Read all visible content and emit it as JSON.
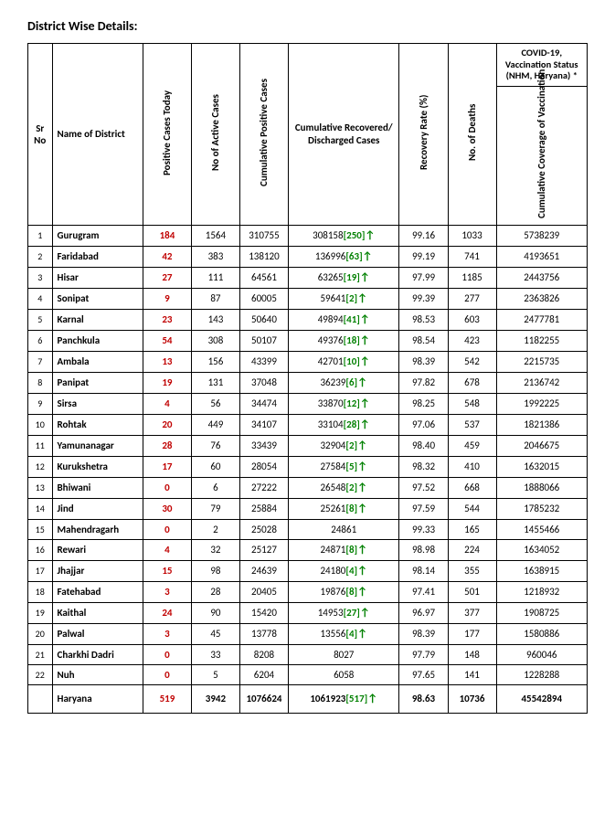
{
  "title": "District Wise Details:",
  "headers": {
    "sr": "Sr No",
    "name": "Name of District",
    "today": "Positive Cases Today",
    "active": "No of Active Cases",
    "cumpos": "Cumulative Positive Cases",
    "recov": "Cumulative Recovered/ Discharged Cases",
    "rate": "Recovery Rate (%)",
    "deaths": "No. of Deaths",
    "vacc_top": "COVID-19, Vaccination Status (NHM, Haryana) *",
    "vacc": "Cumulative Coverage of Vaccination"
  },
  "rows": [
    {
      "sr": "1",
      "d": "Gurugram",
      "t": "184",
      "a": "1564",
      "c": "310755",
      "r": "308158",
      "rd": "[250]",
      "ar": "↑",
      "rr": "99.16",
      "dd": "1033",
      "v": "5738239"
    },
    {
      "sr": "2",
      "d": "Faridabad",
      "t": "42",
      "a": "383",
      "c": "138120",
      "r": "136996",
      "rd": "[63]",
      "ar": "↑",
      "rr": "99.19",
      "dd": "741",
      "v": "4193651"
    },
    {
      "sr": "3",
      "d": "Hisar",
      "t": "27",
      "a": "111",
      "c": "64561",
      "r": "63265",
      "rd": "[19]",
      "ar": "↑",
      "rr": "97.99",
      "dd": "1185",
      "v": "2443756"
    },
    {
      "sr": "4",
      "d": "Sonipat",
      "t": "9",
      "a": "87",
      "c": "60005",
      "r": "59641",
      "rd": "[2]",
      "ar": "↑",
      "rr": "99.39",
      "dd": "277",
      "v": "2363826"
    },
    {
      "sr": "5",
      "d": "Karnal",
      "t": "23",
      "a": "143",
      "c": "50640",
      "r": "49894",
      "rd": "[41]",
      "ar": "↑",
      "rr": "98.53",
      "dd": "603",
      "v": "2477781"
    },
    {
      "sr": "6",
      "d": "Panchkula",
      "t": "54",
      "a": "308",
      "c": "50107",
      "r": "49376",
      "rd": "[18]",
      "ar": "↑",
      "rr": "98.54",
      "dd": "423",
      "v": "1182255"
    },
    {
      "sr": "7",
      "d": "Ambala",
      "t": "13",
      "a": "156",
      "c": "43399",
      "r": "42701",
      "rd": "[10]",
      "ar": "↑",
      "rr": "98.39",
      "dd": "542",
      "v": "2215735"
    },
    {
      "sr": "8",
      "d": "Panipat",
      "t": "19",
      "a": "131",
      "c": "37048",
      "r": "36239",
      "rd": "[6]",
      "ar": "↑",
      "rr": "97.82",
      "dd": "678",
      "v": "2136742"
    },
    {
      "sr": "9",
      "d": "Sirsa",
      "t": "4",
      "a": "56",
      "c": "34474",
      "r": "33870",
      "rd": "[12]",
      "ar": "↑",
      "rr": "98.25",
      "dd": "548",
      "v": "1992225"
    },
    {
      "sr": "10",
      "d": "Rohtak",
      "t": "20",
      "a": "449",
      "c": "34107",
      "r": "33104",
      "rd": "[28]",
      "ar": "↑",
      "rr": "97.06",
      "dd": "537",
      "v": "1821386"
    },
    {
      "sr": "11",
      "d": "Yamunanagar",
      "t": "28",
      "a": "76",
      "c": "33439",
      "r": "32904",
      "rd": "[2]",
      "ar": "↑",
      "rr": "98.40",
      "dd": "459",
      "v": "2046675"
    },
    {
      "sr": "12",
      "d": "Kurukshetra",
      "t": "17",
      "a": "60",
      "c": "28054",
      "r": "27584",
      "rd": "[5]",
      "ar": "↑",
      "rr": "98.32",
      "dd": "410",
      "v": "1632015"
    },
    {
      "sr": "13",
      "d": "Bhiwani",
      "t": "0",
      "a": "6",
      "c": "27222",
      "r": "26548",
      "rd": "[2]",
      "ar": "↑",
      "rr": "97.52",
      "dd": "668",
      "v": "1888066"
    },
    {
      "sr": "14",
      "d": "Jind",
      "t": "30",
      "a": "79",
      "c": "25884",
      "r": "25261",
      "rd": "[8]",
      "ar": "↑",
      "rr": "97.59",
      "dd": "544",
      "v": "1785232"
    },
    {
      "sr": "15",
      "d": "Mahendragarh",
      "t": "0",
      "a": "2",
      "c": "25028",
      "r": "24861",
      "rd": "",
      "ar": "",
      "rr": "99.33",
      "dd": "165",
      "v": "1455466"
    },
    {
      "sr": "16",
      "d": "Rewari",
      "t": "4",
      "a": "32",
      "c": "25127",
      "r": "24871",
      "rd": "[8]",
      "ar": "↑",
      "rr": "98.98",
      "dd": "224",
      "v": "1634052"
    },
    {
      "sr": "17",
      "d": "Jhajjar",
      "t": "15",
      "a": "98",
      "c": "24639",
      "r": "24180",
      "rd": "[4]",
      "ar": "↑",
      "rr": "98.14",
      "dd": "355",
      "v": "1638915"
    },
    {
      "sr": "18",
      "d": "Fatehabad",
      "t": "3",
      "a": "28",
      "c": "20405",
      "r": "19876",
      "rd": "[8]",
      "ar": "↑",
      "rr": "97.41",
      "dd": "501",
      "v": "1218932"
    },
    {
      "sr": "19",
      "d": "Kaithal",
      "t": "24",
      "a": "90",
      "c": "15420",
      "r": "14953",
      "rd": "[27]",
      "ar": "↑",
      "rr": "96.97",
      "dd": "377",
      "v": "1908725"
    },
    {
      "sr": "20",
      "d": "Palwal",
      "t": "3",
      "a": "45",
      "c": "13778",
      "r": "13556",
      "rd": "[4]",
      "ar": "↑",
      "rr": "98.39",
      "dd": "177",
      "v": "1580886"
    },
    {
      "sr": "21",
      "d": "Charkhi Dadri",
      "t": "0",
      "a": "33",
      "c": "8208",
      "r": "8027",
      "rd": "",
      "ar": "",
      "rr": "97.79",
      "dd": "148",
      "v": "960046"
    },
    {
      "sr": "22",
      "d": "Nuh",
      "t": "0",
      "a": "5",
      "c": "6204",
      "r": "6058",
      "rd": "",
      "ar": "",
      "rr": "97.65",
      "dd": "141",
      "v": "1228288"
    }
  ],
  "total": {
    "d": "Haryana",
    "t": "519",
    "a": "3942",
    "c": "1076624",
    "r": "1061923",
    "rd": "[517]",
    "ar": "↑",
    "rr": "98.63",
    "dd": "10736",
    "v": "45542894"
  }
}
